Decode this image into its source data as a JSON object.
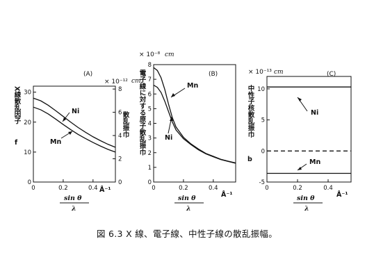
{
  "caption": "図 6.3  X 線、電子線、中性子線の散乱振幅。",
  "x_axis_common": {
    "numerator": "sin θ",
    "denominator": "λ",
    "unit": "Å⁻¹",
    "ticks": [
      "0",
      "0.2",
      "0.4"
    ]
  },
  "chart_data": [
    {
      "type": "line",
      "panel_label": "(A)",
      "ylabel": "X線散乱因子",
      "ylabel_symbol": "f",
      "ylabel_right": "散乱振巾",
      "right_scale_note": "× 10⁻¹²",
      "right_scale_unit": "cm",
      "xlim": [
        0,
        0.55
      ],
      "ylim": [
        0,
        32
      ],
      "yticks_left": [
        "0",
        "10",
        "20",
        "30"
      ],
      "yticks_right": [
        "0",
        "2",
        "4",
        "6",
        "8"
      ],
      "series": [
        {
          "name": "Ni",
          "x": [
            0,
            0.05,
            0.1,
            0.15,
            0.2,
            0.25,
            0.3,
            0.35,
            0.4,
            0.45,
            0.5,
            0.55
          ],
          "y": [
            28.0,
            27.1,
            25.6,
            23.8,
            21.9,
            20.0,
            18.2,
            16.6,
            15.1,
            13.8,
            12.6,
            11.6
          ]
        },
        {
          "name": "Mn",
          "x": [
            0,
            0.05,
            0.1,
            0.15,
            0.2,
            0.25,
            0.3,
            0.35,
            0.4,
            0.45,
            0.5,
            0.55
          ],
          "y": [
            25.0,
            24.1,
            22.7,
            21.0,
            19.2,
            17.5,
            15.9,
            14.5,
            13.2,
            12.0,
            10.9,
            10.0
          ]
        }
      ]
    },
    {
      "type": "line",
      "panel_label": "(B)",
      "ylabel": "電子線に対する原子散乱振巾",
      "scale_note": "× 10⁻⁸",
      "scale_unit": "cm",
      "xlim": [
        0,
        0.55
      ],
      "ylim": [
        0,
        8
      ],
      "yticks": [
        "0",
        "1",
        "2",
        "3",
        "4",
        "5",
        "6",
        "7",
        "8"
      ],
      "series": [
        {
          "name": "Mn",
          "x": [
            0,
            0.025,
            0.05,
            0.075,
            0.1,
            0.125,
            0.15,
            0.2,
            0.25,
            0.3,
            0.35,
            0.4,
            0.45,
            0.5,
            0.55
          ],
          "y": [
            7.8,
            7.6,
            7.1,
            6.3,
            5.3,
            4.4,
            3.75,
            3.05,
            2.6,
            2.25,
            1.95,
            1.75,
            1.55,
            1.42,
            1.3
          ]
        },
        {
          "name": "Ni",
          "x": [
            0,
            0.025,
            0.05,
            0.075,
            0.1,
            0.125,
            0.15,
            0.2,
            0.25,
            0.3,
            0.35,
            0.4,
            0.45,
            0.5,
            0.55
          ],
          "y": [
            6.6,
            6.45,
            6.1,
            5.5,
            4.8,
            4.1,
            3.55,
            2.95,
            2.55,
            2.2,
            1.92,
            1.72,
            1.53,
            1.4,
            1.28
          ]
        }
      ]
    },
    {
      "type": "line",
      "panel_label": "(C)",
      "ylabel": "中性子核散乱振巾",
      "ylabel_symbol": "b",
      "scale_note": "× 10⁻¹³",
      "scale_unit": "cm",
      "xlim": [
        0,
        0.55
      ],
      "ylim": [
        -5,
        12
      ],
      "yticks": [
        "-5",
        "0",
        "5",
        "10"
      ],
      "series": [
        {
          "name": "Ni",
          "x": [
            0,
            0.55
          ],
          "y": [
            10.3,
            10.3
          ]
        },
        {
          "name": "Mn",
          "x": [
            0,
            0.55
          ],
          "y": [
            -3.6,
            -3.6
          ]
        }
      ],
      "zero_line": "dashed"
    }
  ]
}
